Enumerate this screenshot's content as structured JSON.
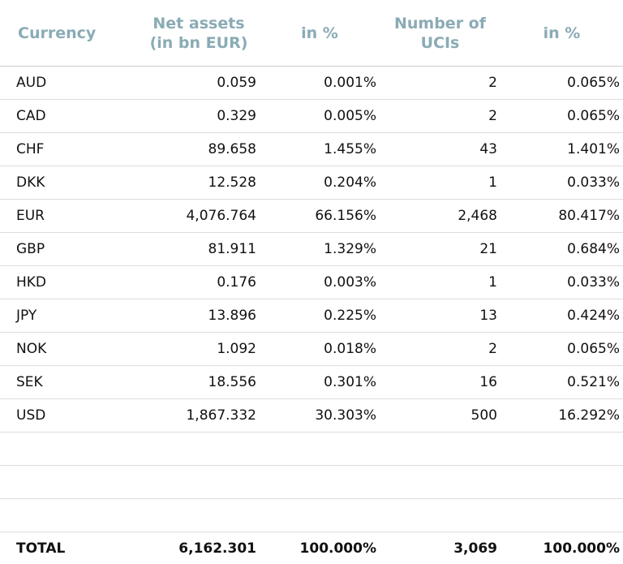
{
  "header": [
    [
      "Currency"
    ],
    [
      "Net assets",
      "(in bn EUR)"
    ],
    [
      "in %"
    ],
    [
      "Number of",
      "UCIs"
    ],
    [
      "in %"
    ]
  ],
  "rows": [
    [
      "AUD",
      "0.059",
      "0.001%",
      "2",
      "0.065%"
    ],
    [
      "CAD",
      "0.329",
      "0.005%",
      "2",
      "0.065%"
    ],
    [
      "CHF",
      "89.658",
      "1.455%",
      "43",
      "1.401%"
    ],
    [
      "DKK",
      "12.528",
      "0.204%",
      "1",
      "0.033%"
    ],
    [
      "EUR",
      "4,076.764",
      "66.156%",
      "2,468",
      "80.417%"
    ],
    [
      "GBP",
      "81.911",
      "1.329%",
      "21",
      "0.684%"
    ],
    [
      "HKD",
      "0.176",
      "0.003%",
      "1",
      "0.033%"
    ],
    [
      "JPY",
      "13.896",
      "0.225%",
      "13",
      "0.424%"
    ],
    [
      "NOK",
      "1.092",
      "0.018%",
      "2",
      "0.065%"
    ],
    [
      "SEK",
      "18.556",
      "0.301%",
      "16",
      "0.521%"
    ],
    [
      "USD",
      "1,867.332",
      "30.303%",
      "500",
      "16.292%"
    ]
  ],
  "total": [
    "TOTAL",
    "6,162.301",
    "100.000%",
    "3,069",
    "100.000%"
  ]
}
